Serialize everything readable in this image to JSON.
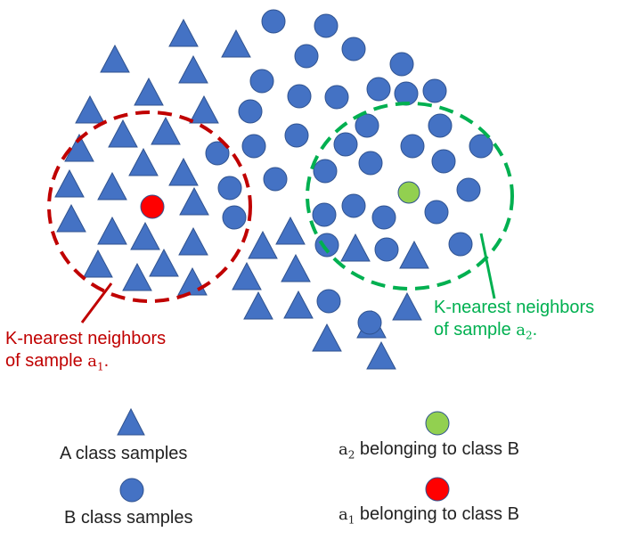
{
  "annotations": {
    "a1_neighbors": {
      "line1": "K-nearest neighbors",
      "line2_prefix": "of sample ",
      "var": "a",
      "sub": "1",
      "suffix": "."
    },
    "a2_neighbors": {
      "line1": "K-nearest neighbors",
      "line2_prefix": "of sample ",
      "var": "a",
      "sub": "2",
      "suffix": "."
    }
  },
  "legend": {
    "class_a": "A class samples",
    "class_b": "B class samples",
    "a2": {
      "var": "a",
      "sub": "2",
      "text": " belonging to class B"
    },
    "a1": {
      "var": "a",
      "sub": "1",
      "text": " belonging to class B"
    }
  },
  "colors": {
    "sample_fill": "#4472c4",
    "sample_stroke": "#2f528f",
    "a1_fill": "#ff0000",
    "a2_fill": "#92d050",
    "a1_circle": "#c00000",
    "a2_circle": "#00b050"
  },
  "icons": {
    "class_a": "triangle",
    "class_b": "circle"
  }
}
